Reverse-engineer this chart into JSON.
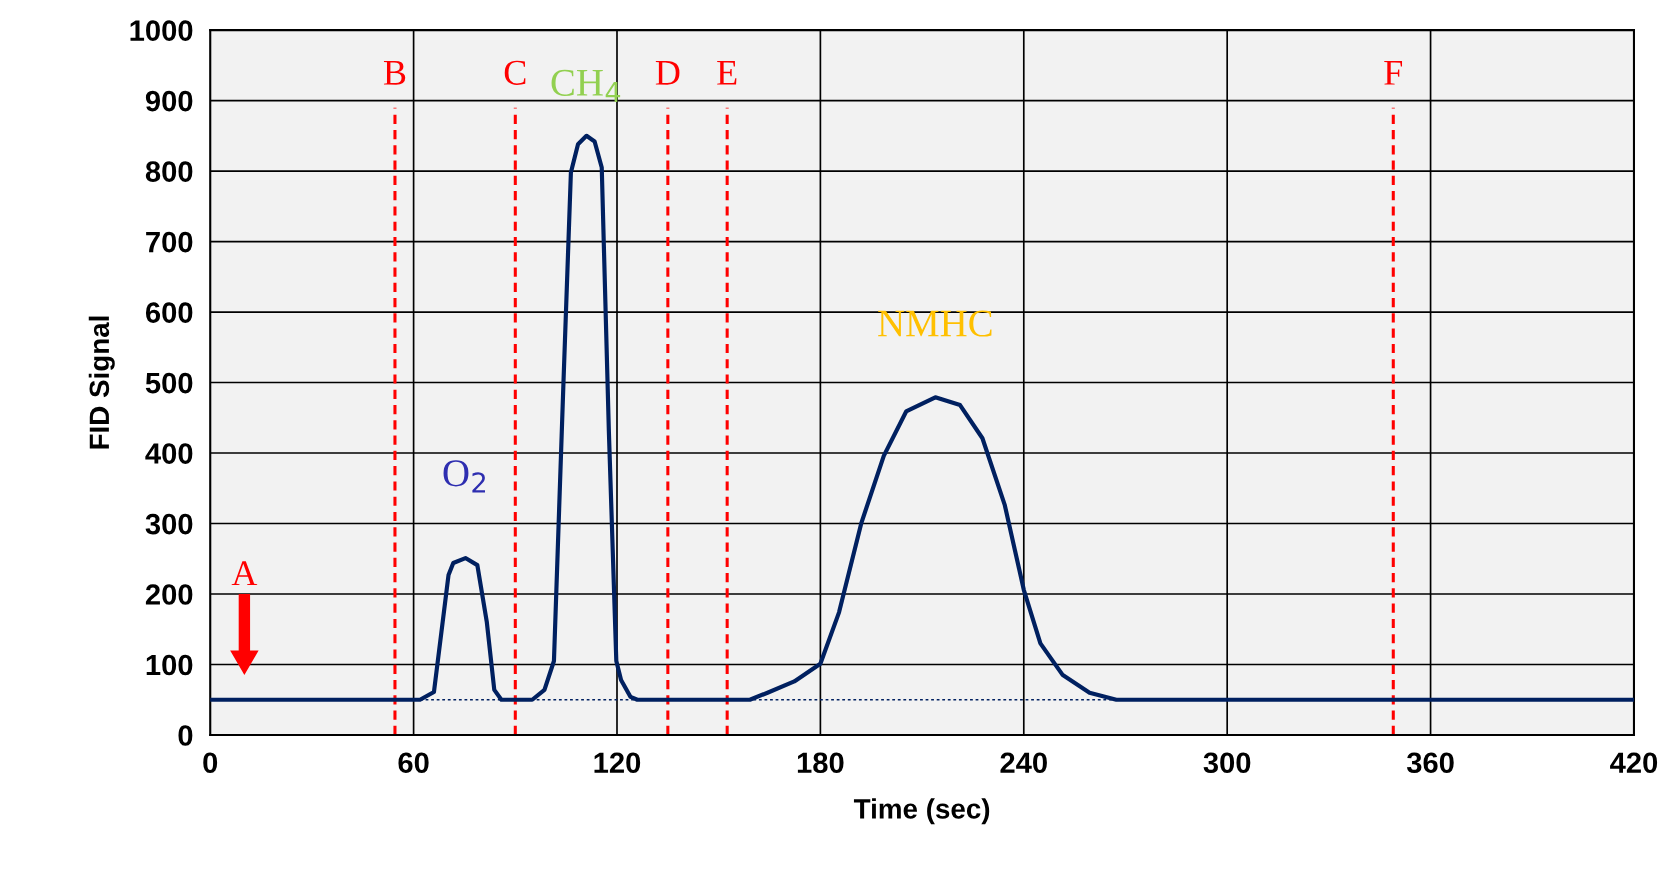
{
  "chart_data": {
    "type": "line",
    "xlabel": "Time (sec)",
    "ylabel": "FID Signal",
    "xlim": [
      0,
      420
    ],
    "xticks": [
      0,
      60,
      120,
      180,
      240,
      300,
      360,
      420
    ],
    "ylim": [
      0,
      1000
    ],
    "yticks": [
      0,
      100,
      200,
      300,
      400,
      500,
      600,
      700,
      800,
      900,
      1000
    ],
    "grid": true,
    "marker": "none",
    "series": [
      {
        "color": "#002060",
        "line_style": "solid",
        "x": [
          0,
          61.9,
          66,
          70.3,
          71.7,
          75.3,
          78.8,
          81.6,
          83.8,
          85.9,
          95,
          98.6,
          101.4,
          104.2,
          106.4,
          108.5,
          111,
          113.4,
          115.5,
          117.6,
          119.8,
          121.2,
          124,
          126,
          159.2,
          164.4,
          172.3,
          180,
          185.5,
          192.1,
          198.7,
          205.3,
          213.9,
          221.2,
          227.8,
          234.4,
          240,
          244.9,
          251.5,
          259.4,
          267.3,
          420
        ],
        "values": [
          50,
          50,
          61,
          227,
          244,
          251,
          241,
          160,
          64,
          50,
          50,
          64,
          105,
          499,
          798,
          838,
          850,
          842,
          805,
          431,
          105,
          78,
          54,
          50,
          50,
          60,
          76,
          101,
          174,
          301,
          396,
          459,
          479,
          468,
          421,
          326,
          206,
          130,
          85,
          60,
          50,
          50
        ]
      },
      {
        "color": "#002060",
        "line_style": "dotted",
        "x": [
          61.9,
          267.3
        ],
        "values": [
          50,
          50
        ]
      }
    ],
    "ref_lines": [
      {
        "axis": "x",
        "value": 54.5,
        "label": "B",
        "color": "#ff0000",
        "line_style": "dashed"
      },
      {
        "axis": "x",
        "value": 90,
        "label": "C",
        "color": "#ff0000",
        "line_style": "dashed"
      },
      {
        "axis": "x",
        "value": 135,
        "label": "D",
        "color": "#ff0000",
        "line_style": "dashed"
      },
      {
        "axis": "x",
        "value": 152.5,
        "label": "E",
        "color": "#ff0000",
        "line_style": "dashed"
      },
      {
        "axis": "x",
        "value": 349,
        "label": "F",
        "color": "#ff0000",
        "line_style": "dashed"
      }
    ],
    "annotations": [
      "A",
      {
        "text": "O$_{2}$",
        "x": 75.3,
        "y": 251
      },
      {
        "text": "CH$_{4}$",
        "x": 111,
        "y": 850
      },
      {
        "text": "NMHC",
        "x": 213.9,
        "y": 479
      }
    ]
  }
}
